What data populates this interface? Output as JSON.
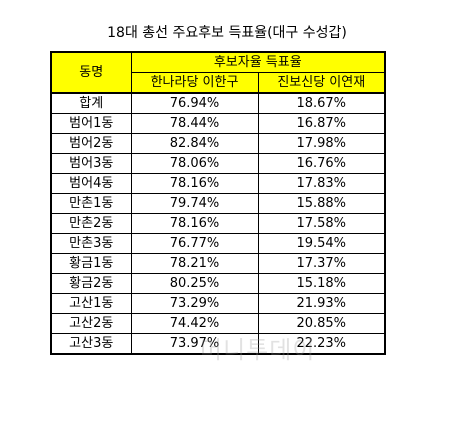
{
  "title": "18대 총선 주요후보 득표율(대구 수성갑)",
  "table": {
    "header_dong": "동명",
    "header_group": "후보자율 득표율",
    "header_candidates": [
      "한나라당 이한구",
      "진보신당 이연재"
    ],
    "rows": [
      {
        "dong": "합계",
        "v1": "76.94%",
        "v2": "18.67%"
      },
      {
        "dong": "범어1동",
        "v1": "78.44%",
        "v2": "16.87%"
      },
      {
        "dong": "범어2동",
        "v1": "82.84%",
        "v2": "17.98%"
      },
      {
        "dong": "범어3동",
        "v1": "78.06%",
        "v2": "16.76%"
      },
      {
        "dong": "범어4동",
        "v1": "78.16%",
        "v2": "17.83%"
      },
      {
        "dong": "만촌1동",
        "v1": "79.74%",
        "v2": "15.88%"
      },
      {
        "dong": "만촌2동",
        "v1": "78.16%",
        "v2": "17.58%"
      },
      {
        "dong": "만촌3동",
        "v1": "76.77%",
        "v2": "19.54%"
      },
      {
        "dong": "황금1동",
        "v1": "78.21%",
        "v2": "17.37%"
      },
      {
        "dong": "황금2동",
        "v1": "80.25%",
        "v2": "15.18%"
      },
      {
        "dong": "고산1동",
        "v1": "73.29%",
        "v2": "21.93%"
      },
      {
        "dong": "고산2동",
        "v1": "74.42%",
        "v2": "20.85%"
      },
      {
        "dong": "고산3동",
        "v1": "73.97%",
        "v2": "22.23%"
      }
    ]
  },
  "watermark": "머니투데이",
  "colors": {
    "header_fill": "#ffff00",
    "border": "#000000",
    "background": "#ffffff"
  }
}
